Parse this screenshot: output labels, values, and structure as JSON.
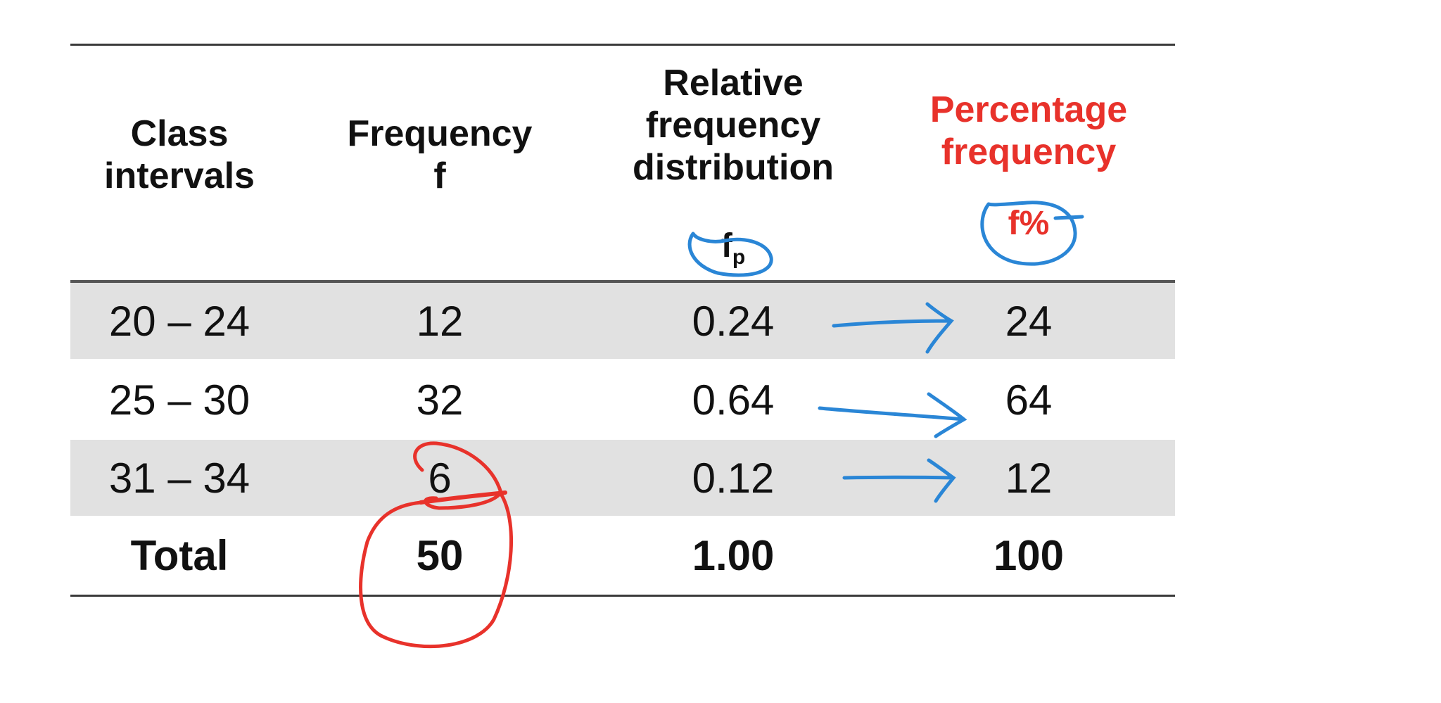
{
  "table": {
    "headers": [
      {
        "lines": [
          "Class",
          "intervals"
        ]
      },
      {
        "lines": [
          "Frequency",
          "f"
        ]
      },
      {
        "lines": [
          "Relative",
          "frequency",
          "distribution"
        ],
        "symbol": "f",
        "symbol_sub": "p"
      },
      {
        "lines": [
          "Percentage",
          "frequency"
        ],
        "symbol": "f%"
      }
    ],
    "rows": [
      [
        "20 – 24",
        "12",
        "0.24",
        "24"
      ],
      [
        "25 – 30",
        "32",
        "0.64",
        "64"
      ],
      [
        "31 – 34",
        "6",
        "0.12",
        "12"
      ]
    ],
    "total": [
      "Total",
      "50",
      "1.00",
      "100"
    ]
  },
  "colors": {
    "highlight_header": "#e8322b",
    "band": "#e1e1e1",
    "pen_blue": "#2a86d6",
    "pen_red": "#e8322b"
  }
}
